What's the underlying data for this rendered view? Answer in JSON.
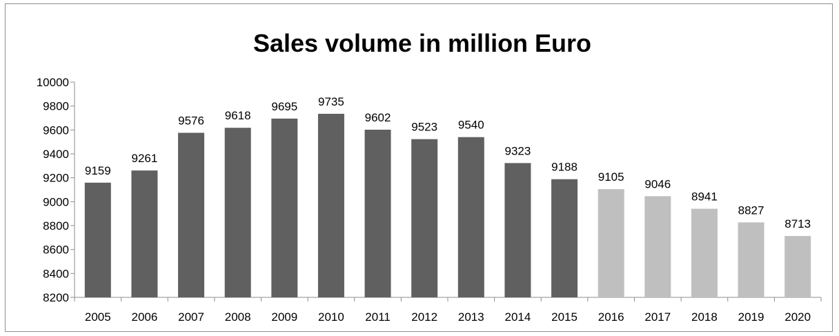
{
  "chart_data": {
    "type": "bar",
    "title": "Sales volume in million Euro",
    "xlabel": "",
    "ylabel": "",
    "categories": [
      "2005",
      "2006",
      "2007",
      "2008",
      "2009",
      "2010",
      "2011",
      "2012",
      "2013",
      "2014",
      "2015",
      "2016",
      "2017",
      "2018",
      "2019",
      "2020"
    ],
    "series": [
      {
        "values": [
          9159,
          9261,
          9576,
          9618,
          9695,
          9735,
          9602,
          9523,
          9540,
          9323,
          9188,
          9105,
          9046,
          8941,
          8827,
          8713
        ]
      }
    ],
    "ylim": [
      8200,
      10000
    ],
    "yticks": [
      "8200",
      "8400",
      "8600",
      "8800",
      "9000",
      "9200",
      "9400",
      "9600",
      "9800",
      "10000"
    ],
    "grid": false,
    "legend": "none",
    "colors": {
      "actual": "#606060",
      "forecast": "#bfbfbf",
      "axis": "#8c8c8c"
    },
    "forecast_from_category": "2016"
  }
}
